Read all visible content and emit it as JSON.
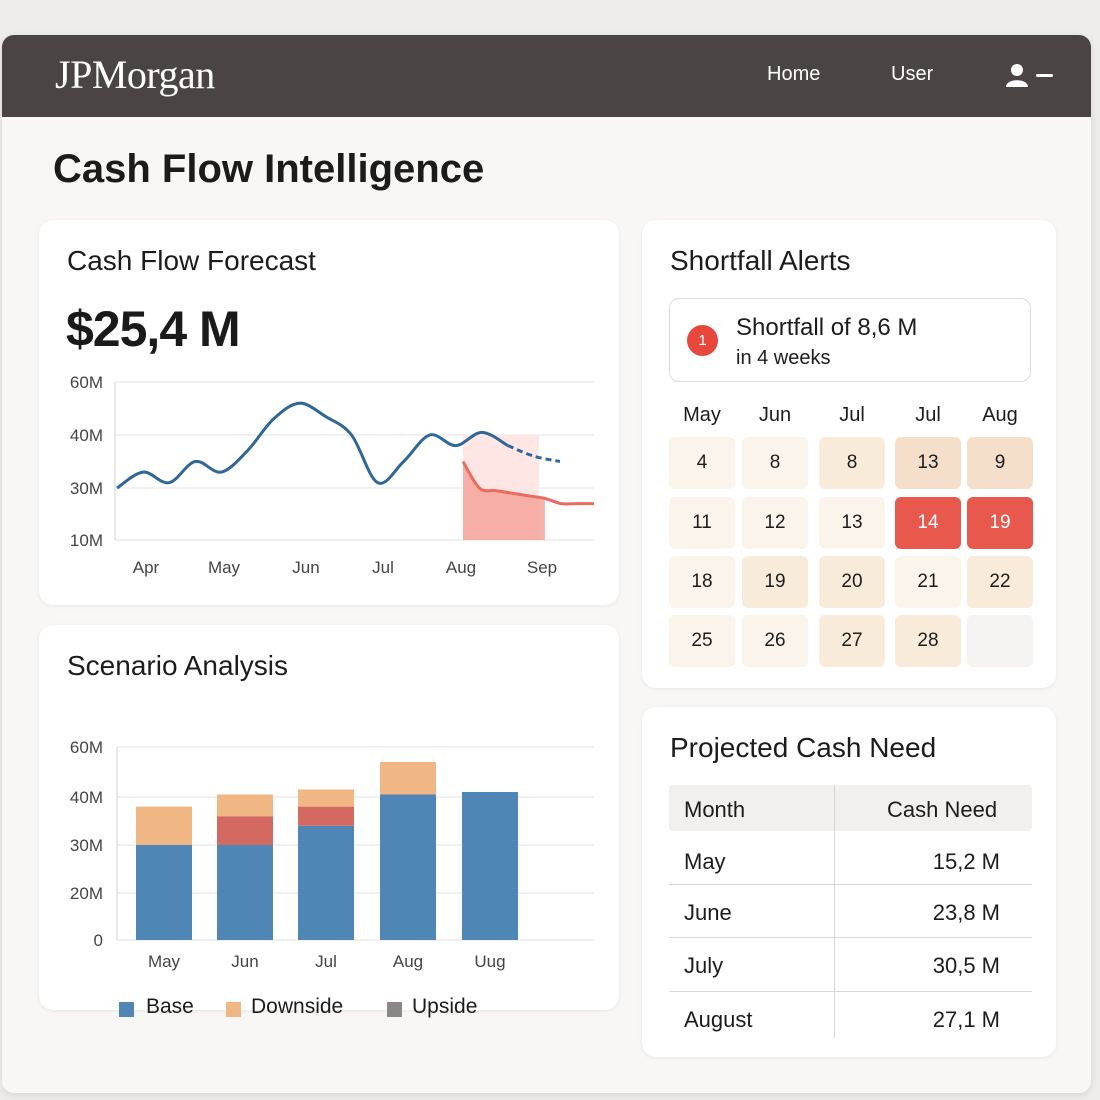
{
  "navbar": {
    "logo": "JPMorgan",
    "links": [
      "Home",
      "User"
    ],
    "user_menu_icon": "user-icon"
  },
  "page": {
    "title": "Cash Flow Intelligence"
  },
  "forecast": {
    "title": "Cash Flow Forecast",
    "value": "$25,4 M"
  },
  "alerts": {
    "title": "Shortfall Alerts",
    "badge": "1",
    "headline": "Shortfall of  8,6 M",
    "subline": "in 4 weeks",
    "calendar_headers": [
      "May",
      "Jun",
      "Jul",
      "Jul",
      "Aug"
    ],
    "calendar_rows": [
      [
        "4",
        "8",
        "8",
        "13",
        "9"
      ],
      [
        "11",
        "12",
        "13",
        "14",
        "19"
      ],
      [
        "18",
        "19",
        "20",
        "21",
        "22"
      ],
      [
        "25",
        "26",
        "27",
        "28",
        ""
      ]
    ],
    "highlighted_days": [
      "14",
      "19"
    ],
    "colors": {
      "alert": "#e8584c"
    }
  },
  "cash_need": {
    "title": "Projected Cash Need",
    "headers": [
      "Month",
      "Cash Need"
    ],
    "rows": [
      [
        "May",
        "15,2 M"
      ],
      [
        "June",
        "23,8 M"
      ],
      [
        "July",
        "30,5 M"
      ],
      [
        "August",
        "27,1 M"
      ]
    ]
  },
  "scenario": {
    "title": "Scenario Analysis",
    "legend": [
      "Base",
      "Downside",
      "Upside"
    ]
  },
  "chart_data": [
    {
      "type": "line",
      "title": "Cash Flow Forecast",
      "y_tick_labels": [
        "60M",
        "40M",
        "30M",
        "10M"
      ],
      "x_tick_labels": [
        "Apr",
        "May",
        "Jun",
        "Jul",
        "Aug",
        "Sep"
      ],
      "series": [
        {
          "values": [
            30,
            33,
            31,
            35,
            33,
            37,
            46,
            52,
            47,
            40,
            31,
            35,
            40,
            38,
            41,
            38,
            36,
            35
          ],
          "color": "#2f6798"
        },
        {
          "values": [
            35,
            30,
            29,
            28,
            27,
            26,
            24,
            24,
            24
          ],
          "color": "#ec6a5e"
        }
      ],
      "shortfall_band": {
        "from": "Aug",
        "to": "Sep",
        "color": "#f4a39b"
      },
      "grid": true
    },
    {
      "type": "bar",
      "title": "Scenario Analysis",
      "categories": [
        "May",
        "Jun",
        "Jul",
        "Aug",
        "Uug"
      ],
      "y_tick_labels": [
        "60M",
        "40M",
        "30M",
        "20M",
        "0"
      ],
      "series": [
        {
          "name": "Base",
          "values": [
            30,
            30,
            34,
            41,
            42
          ],
          "color": "#4f86b5"
        },
        {
          "name": "Downside",
          "values": [
            8,
            5,
            5,
            13,
            0
          ],
          "color": "#f0b784"
        },
        {
          "name": "Upside",
          "values": [
            0,
            6,
            4,
            0,
            0
          ],
          "color": "#d26a62"
        }
      ],
      "legend_position": "bottom",
      "grid": true
    }
  ]
}
